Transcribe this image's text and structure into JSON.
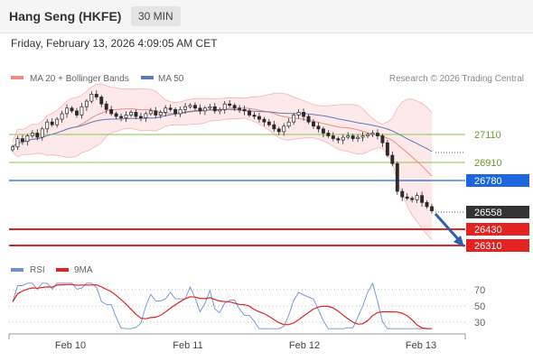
{
  "header": {
    "instrument": "Hang Seng (HKFE)",
    "timeframe": "30 MIN"
  },
  "timestamp": "Friday, February 13, 2026 4:09:05 AM CET",
  "legend": {
    "bollinger_label": "MA 20 + Bollinger Bands",
    "ma50_label": "MA 50",
    "research_label": "Research © 2026 Trading Central",
    "rsi_label": "RSI",
    "rsi_ma_label": "9MA"
  },
  "colors": {
    "bollinger": "#f28b82",
    "bollinger_fill": "#fde3e3",
    "ma50": "#5b7db8",
    "pivot_green": "#8bc34a",
    "resistance_blue": "#1e66dd",
    "support_red": "#e32222",
    "current_price_bg": "#333333",
    "arrow": "#2f5fa8",
    "candle": "#2a2a2a",
    "rsi": "#6c8fd8",
    "rsi_ma": "#e32222"
  },
  "levels": [
    {
      "label": "27110",
      "kind": "pivot"
    },
    {
      "label": "26910",
      "kind": "pivot"
    },
    {
      "label": "26780",
      "kind": "resistance"
    },
    {
      "label": "26558",
      "kind": "current"
    },
    {
      "label": "26430",
      "kind": "support"
    },
    {
      "label": "26310",
      "kind": "support"
    }
  ],
  "rsi_ticks": [
    "70",
    "50",
    "30"
  ],
  "x_labels": [
    "Feb 10",
    "Feb 11",
    "Feb 12",
    "Feb 13"
  ],
  "chart_data": {
    "type": "line",
    "subtype": "candlestick-price-chart",
    "price_levels": {
      "pivot": [
        27110,
        26910
      ],
      "resistance": [
        26780
      ],
      "current": 26558,
      "support": [
        26430,
        26310
      ]
    },
    "close_series": [
      27020,
      27080,
      27060,
      27100,
      27120,
      27090,
      27150,
      27200,
      27180,
      27220,
      27260,
      27300,
      27280,
      27250,
      27310,
      27350,
      27400,
      27380,
      27330,
      27290,
      27260,
      27240,
      27230,
      27250,
      27270,
      27240,
      27230,
      27260,
      27280,
      27250,
      27270,
      27300,
      27290,
      27260,
      27290,
      27310,
      27320,
      27300,
      27280,
      27300,
      27310,
      27280,
      27290,
      27330,
      27320,
      27300,
      27290,
      27280,
      27250,
      27240,
      27220,
      27200,
      27180,
      27150,
      27130,
      27170,
      27200,
      27250,
      27270,
      27240,
      27200,
      27170,
      27150,
      27120,
      27100,
      27080,
      27070,
      27090,
      27100,
      27080,
      27090,
      27100,
      27110,
      27120,
      27100,
      27050,
      26960,
      26900,
      26700,
      26660,
      26650,
      26640,
      26670,
      26620,
      26590,
      26560
    ],
    "rsi_range": [
      0,
      100
    ],
    "rsi_ticks": [
      30,
      50,
      70
    ],
    "trend": "bearish"
  }
}
